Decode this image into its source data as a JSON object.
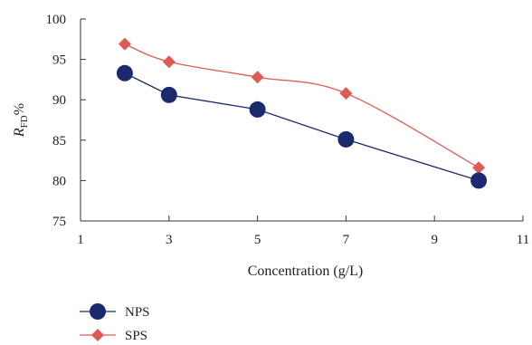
{
  "chart_data": {
    "type": "line",
    "xlabel": "Concentration (g/L)",
    "ylabel_main": "R",
    "ylabel_sub": "FD",
    "ylabel_suffix": "%",
    "xlim": [
      1,
      11
    ],
    "ylim": [
      75,
      100
    ],
    "xticks": [
      1,
      3,
      5,
      7,
      9,
      11
    ],
    "yticks": [
      75,
      80,
      85,
      90,
      95,
      100
    ],
    "grid": false,
    "legend_position": "bottom-left",
    "series": [
      {
        "name": "NPS",
        "marker": "circle",
        "color": "#1a2a6c",
        "smooth": false,
        "x": [
          2,
          3,
          5,
          7,
          10
        ],
        "y": [
          93.3,
          90.6,
          88.8,
          85.1,
          80.0
        ]
      },
      {
        "name": "SPS",
        "marker": "diamond",
        "color": "#e05a55",
        "smooth": true,
        "x": [
          2,
          3,
          5,
          7,
          10
        ],
        "y": [
          96.9,
          94.7,
          92.8,
          90.8,
          81.6
        ]
      }
    ]
  }
}
